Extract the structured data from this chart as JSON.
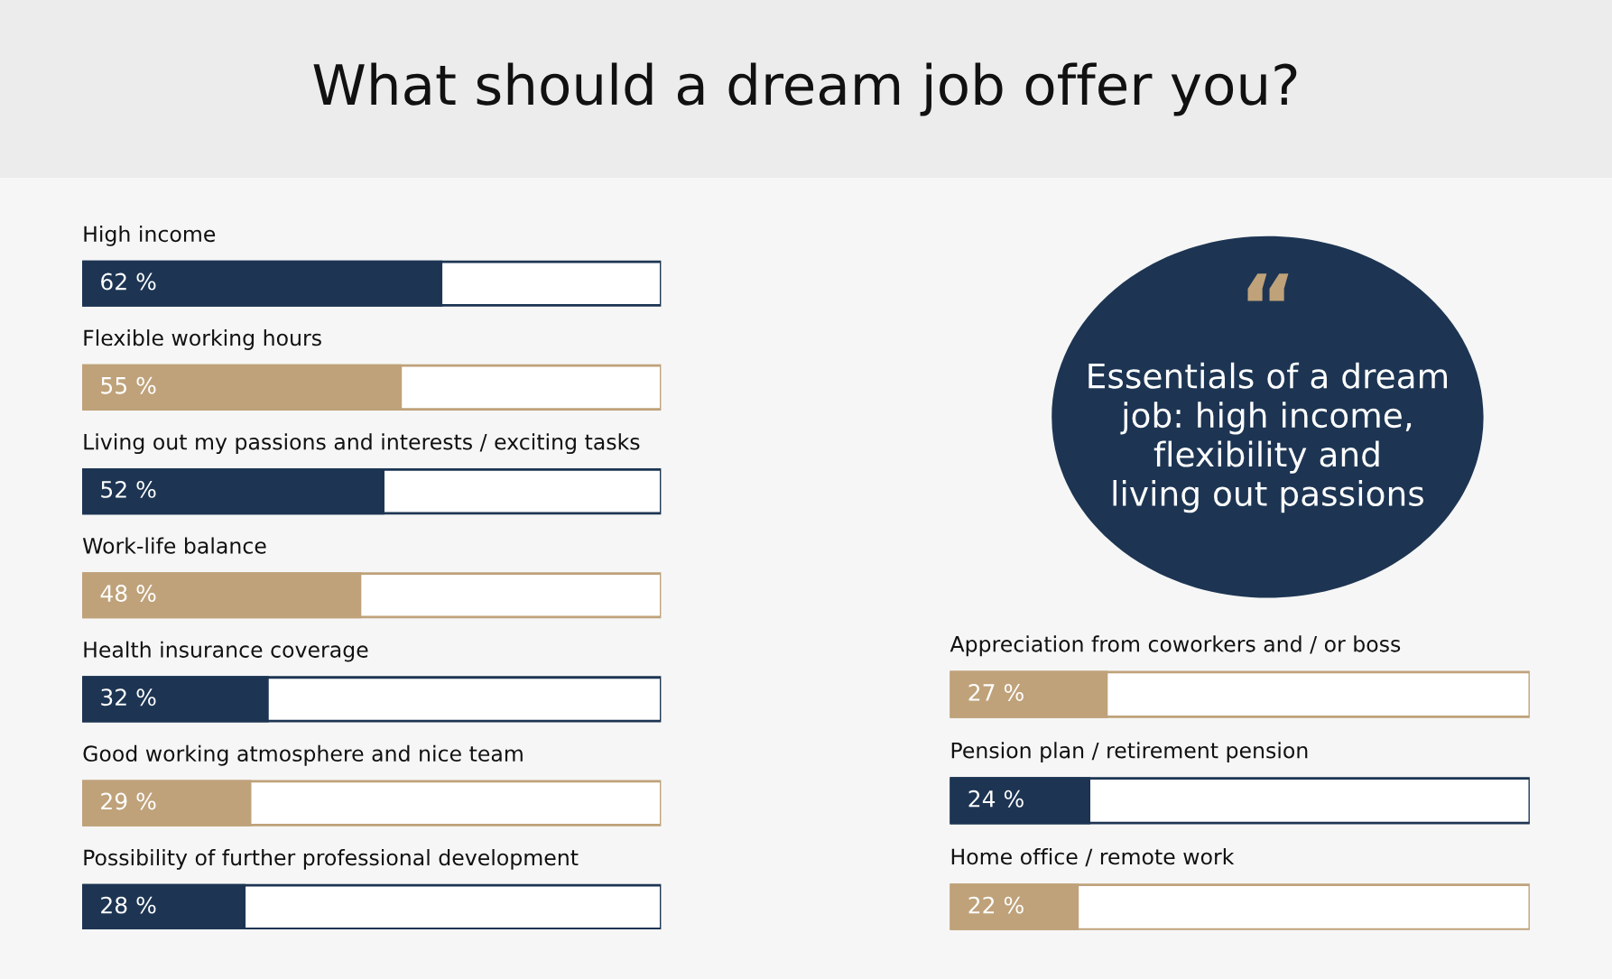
{
  "chart_data": [
    {
      "type": "bar",
      "orientation": "horizontal",
      "title": "What should a dream job offer you?",
      "categories": [
        "High income",
        "Flexible working hours",
        "Living out my passions and interests / exciting tasks",
        "Work-life balance",
        "Health insurance coverage",
        "Good working atmosphere and nice team",
        "Possibility of further professional development"
      ],
      "values": [
        62,
        55,
        52,
        48,
        32,
        29,
        28
      ],
      "colors": [
        "#1d3553",
        "#bfa27a",
        "#1d3553",
        "#bfa27a",
        "#1d3553",
        "#bfa27a",
        "#1d3553"
      ],
      "value_labels": [
        "62 %",
        "55 %",
        "52 %",
        "48 %",
        "32 %",
        "29 %",
        "28 %"
      ],
      "xlim": [
        0,
        100
      ],
      "tick_labels": false
    },
    {
      "type": "other",
      "title": "Essentials of a dream job: high income, flexibility and living out passions",
      "annotations": [
        "“"
      ]
    },
    {
      "type": "bar",
      "orientation": "horizontal",
      "categories": [
        "Appreciation from coworkers and / or boss",
        "Pension plan / retirement pension",
        "Home office / remote work"
      ],
      "values": [
        27,
        24,
        22
      ],
      "colors": [
        "#bfa27a",
        "#1d3553",
        "#bfa27a"
      ],
      "value_labels": [
        "27 %",
        "24 %",
        "22 %"
      ],
      "xlim": [
        0,
        100
      ],
      "tick_labels": false
    }
  ]
}
